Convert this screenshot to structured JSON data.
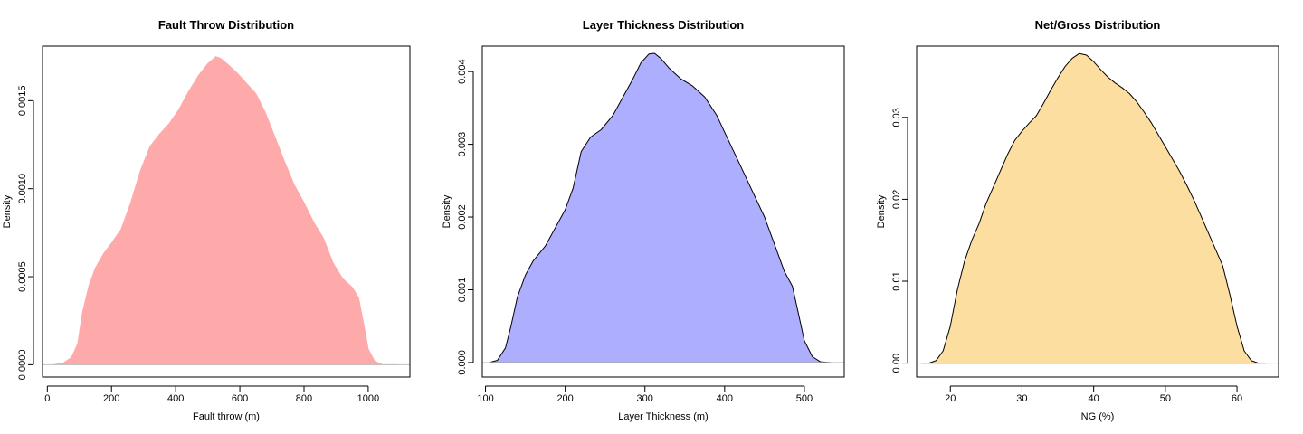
{
  "chart_data": [
    {
      "type": "area",
      "title": "Fault Throw Distribution",
      "xlabel": "Fault throw (m)",
      "ylabel": "Density",
      "xlim": [
        -15,
        1130
      ],
      "ylim": [
        -7e-05,
        0.00181
      ],
      "xticks": [
        0,
        200,
        400,
        600,
        800,
        1000
      ],
      "yticks": [
        0.0,
        0.0005,
        0.001,
        0.0015
      ],
      "ytick_labels": [
        "0.0000",
        "0.0005",
        "0.0010",
        "0.0015"
      ],
      "fill": "#ffaaaa",
      "stroke": "#ffaaaa",
      "x": [
        20,
        50,
        75,
        95,
        110,
        130,
        150,
        175,
        200,
        230,
        260,
        290,
        320,
        350,
        380,
        410,
        440,
        470,
        500,
        525,
        540,
        560,
        590,
        620,
        650,
        680,
        710,
        740,
        770,
        800,
        830,
        860,
        890,
        920,
        950,
        970,
        985,
        1000,
        1020,
        1045,
        1070,
        1090
      ],
      "y": [
        0.0,
        1e-05,
        4e-05,
        0.00012,
        0.0003,
        0.00045,
        0.00055,
        0.00063,
        0.00069,
        0.00077,
        0.00092,
        0.0011,
        0.00124,
        0.00131,
        0.00137,
        0.00145,
        0.00155,
        0.00164,
        0.00171,
        0.00175,
        0.00174,
        0.00171,
        0.00166,
        0.0016,
        0.00154,
        0.00143,
        0.00129,
        0.00115,
        0.00102,
        0.00092,
        0.00081,
        0.00072,
        0.00058,
        0.00049,
        0.00044,
        0.00038,
        0.00024,
        9e-05,
        2e-05,
        0.0,
        0.0,
        0.0
      ]
    },
    {
      "type": "area",
      "title": "Layer Thickness Distribution",
      "xlabel": "Layer Thickness (m)",
      "ylabel": "Density",
      "xlim": [
        96,
        550
      ],
      "ylim": [
        -0.0002,
        0.00435
      ],
      "xticks": [
        100,
        200,
        300,
        400,
        500
      ],
      "yticks": [
        0.0,
        0.001,
        0.002,
        0.003,
        0.004
      ],
      "ytick_labels": [
        "0.000",
        "0.001",
        "0.002",
        "0.003",
        "0.004"
      ],
      "fill": "#aeaefe",
      "stroke": "#000000",
      "x": [
        105,
        115,
        125,
        132,
        140,
        150,
        160,
        175,
        190,
        200,
        210,
        220,
        232,
        245,
        260,
        275,
        285,
        295,
        305,
        312,
        320,
        330,
        345,
        360,
        375,
        390,
        405,
        420,
        435,
        450,
        465,
        475,
        485,
        492,
        500,
        510,
        520,
        533
      ],
      "y": [
        0.0,
        3e-05,
        0.0002,
        0.0005,
        0.0009,
        0.0012,
        0.0014,
        0.0016,
        0.0019,
        0.0021,
        0.0024,
        0.0029,
        0.0031,
        0.0032,
        0.0034,
        0.0037,
        0.0039,
        0.00412,
        0.00424,
        0.00425,
        0.00418,
        0.00405,
        0.0039,
        0.0038,
        0.00365,
        0.0034,
        0.00305,
        0.0027,
        0.00235,
        0.002,
        0.00155,
        0.00125,
        0.00105,
        0.0007,
        0.0003,
        8e-05,
        1e-05,
        0.0
      ]
    },
    {
      "type": "area",
      "title": "Net/Gross Distribution",
      "xlabel": "NG (%)",
      "ylabel": "Density",
      "xlim": [
        15.3,
        65.8
      ],
      "ylim": [
        -0.0017,
        0.0387
      ],
      "xticks": [
        20,
        30,
        40,
        50,
        60
      ],
      "yticks": [
        0.0,
        0.01,
        0.02,
        0.03
      ],
      "ytick_labels": [
        "0.00",
        "0.01",
        "0.02",
        "0.03"
      ],
      "fill": "#fcdea0",
      "stroke": "#000000",
      "x": [
        16,
        17,
        18,
        19,
        20,
        21,
        22,
        23,
        24,
        25,
        26,
        27,
        28,
        29,
        30,
        31,
        32,
        33,
        34,
        35,
        36,
        37,
        38,
        39,
        40,
        41,
        42,
        43,
        44,
        45,
        46,
        47,
        48,
        49,
        50,
        51,
        52,
        53,
        54,
        55,
        56,
        57,
        58,
        59,
        60,
        61,
        62,
        63,
        64
      ],
      "y": [
        0.0,
        0.0,
        0.0003,
        0.0015,
        0.0045,
        0.009,
        0.0125,
        0.015,
        0.017,
        0.0195,
        0.0215,
        0.0235,
        0.0255,
        0.0272,
        0.0283,
        0.0293,
        0.0302,
        0.0317,
        0.0333,
        0.0348,
        0.0362,
        0.0372,
        0.0378,
        0.0376,
        0.0368,
        0.0358,
        0.0349,
        0.0342,
        0.0336,
        0.0329,
        0.0319,
        0.0307,
        0.0294,
        0.0279,
        0.0264,
        0.0249,
        0.0234,
        0.0217,
        0.0199,
        0.0179,
        0.0159,
        0.0139,
        0.0119,
        0.0084,
        0.0045,
        0.0015,
        0.0003,
        0.0,
        0.0
      ]
    }
  ]
}
